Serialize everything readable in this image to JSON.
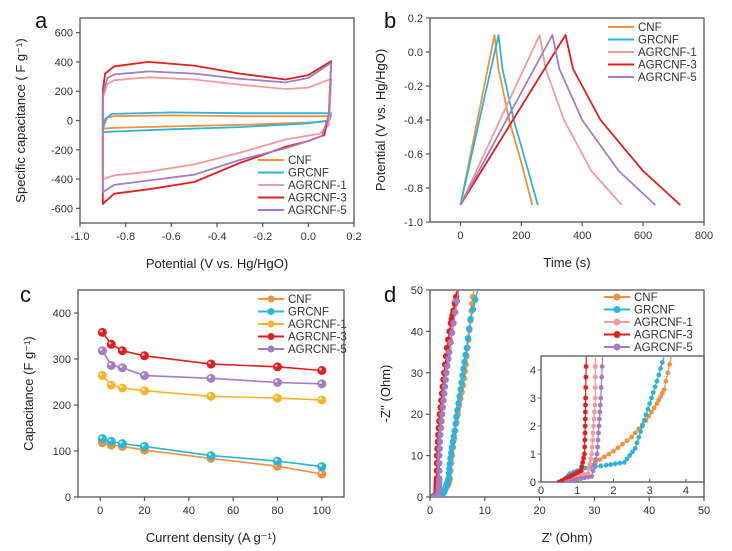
{
  "figure": {
    "panels": [
      "a",
      "b",
      "c",
      "d"
    ]
  },
  "colors": {
    "CNF": "#f0913e",
    "GRCNF": "#2bb5de",
    "AGRCNF-1": "#f59a9a",
    "AGRCNF-3": "#e41d1d",
    "AGRCNF-5": "#a57cc3",
    "AGRCNF-1_c": "#f7b529"
  },
  "chart_data": [
    {
      "panel": "a",
      "type": "line",
      "title": "",
      "xlabel": "Potential (V vs. Hg/HgO)",
      "ylabel": "Specific capacitance ( F g⁻¹)",
      "xlim": [
        -1.0,
        0.2
      ],
      "ylim": [
        -700,
        700
      ],
      "xticks": [
        "-1.0",
        "-0.8",
        "-0.6",
        "-0.4",
        "-0.2",
        "0.0",
        "0.2"
      ],
      "yticks": [
        "-600",
        "-400",
        "-200",
        "0",
        "200",
        "400",
        "600"
      ],
      "legend": [
        "CNF",
        "GRCNF",
        "AGRCNF-1",
        "AGRCNF-3",
        "AGRCNF-5"
      ],
      "legend_position": "bottom-right",
      "series": [
        {
          "name": "CNF",
          "upper": [
            [
              -0.9,
              -50
            ],
            [
              -0.88,
              20
            ],
            [
              -0.85,
              30
            ],
            [
              -0.6,
              35
            ],
            [
              -0.3,
              30
            ],
            [
              0,
              30
            ],
            [
              0.1,
              30
            ]
          ],
          "lower": [
            [
              0.1,
              30
            ],
            [
              0.09,
              -5
            ],
            [
              0,
              -15
            ],
            [
              -0.3,
              -30
            ],
            [
              -0.6,
              -40
            ],
            [
              -0.85,
              -50
            ],
            [
              -0.9,
              -55
            ]
          ]
        },
        {
          "name": "GRCNF",
          "upper": [
            [
              -0.9,
              -75
            ],
            [
              -0.89,
              10
            ],
            [
              -0.86,
              45
            ],
            [
              -0.6,
              55
            ],
            [
              -0.3,
              50
            ],
            [
              0,
              50
            ],
            [
              0.1,
              50
            ]
          ],
          "lower": [
            [
              0.1,
              50
            ],
            [
              0.09,
              0
            ],
            [
              0,
              -20
            ],
            [
              -0.3,
              -45
            ],
            [
              -0.6,
              -60
            ],
            [
              -0.85,
              -75
            ],
            [
              -0.9,
              -80
            ]
          ]
        },
        {
          "name": "AGRCNF-1",
          "upper": [
            [
              -0.9,
              -395
            ],
            [
              -0.9,
              150
            ],
            [
              -0.88,
              250
            ],
            [
              -0.85,
              275
            ],
            [
              -0.7,
              295
            ],
            [
              -0.5,
              280
            ],
            [
              -0.3,
              245
            ],
            [
              -0.1,
              215
            ],
            [
              0.0,
              225
            ],
            [
              0.1,
              285
            ]
          ],
          "lower": [
            [
              0.1,
              285
            ],
            [
              0.09,
              -30
            ],
            [
              0.05,
              -90
            ],
            [
              -0.1,
              -130
            ],
            [
              -0.3,
              -220
            ],
            [
              -0.5,
              -300
            ],
            [
              -0.7,
              -350
            ],
            [
              -0.85,
              -375
            ],
            [
              -0.9,
              -400
            ]
          ]
        },
        {
          "name": "AGRCNF-3",
          "upper": [
            [
              -0.9,
              -570
            ],
            [
              -0.9,
              200
            ],
            [
              -0.89,
              320
            ],
            [
              -0.85,
              370
            ],
            [
              -0.7,
              400
            ],
            [
              -0.5,
              375
            ],
            [
              -0.3,
              320
            ],
            [
              -0.1,
              280
            ],
            [
              0.0,
              310
            ],
            [
              0.1,
              405
            ]
          ],
          "lower": [
            [
              0.1,
              405
            ],
            [
              0.09,
              50
            ],
            [
              0.07,
              -100
            ],
            [
              0.0,
              -140
            ],
            [
              -0.1,
              -180
            ],
            [
              -0.3,
              -290
            ],
            [
              -0.5,
              -420
            ],
            [
              -0.7,
              -470
            ],
            [
              -0.85,
              -500
            ],
            [
              -0.89,
              -555
            ],
            [
              -0.9,
              -570
            ]
          ]
        },
        {
          "name": "AGRCNF-5",
          "upper": [
            [
              -0.9,
              -490
            ],
            [
              -0.9,
              180
            ],
            [
              -0.88,
              290
            ],
            [
              -0.85,
              315
            ],
            [
              -0.7,
              335
            ],
            [
              -0.5,
              320
            ],
            [
              -0.3,
              285
            ],
            [
              -0.1,
              260
            ],
            [
              0.0,
              290
            ],
            [
              0.1,
              395
            ]
          ],
          "lower": [
            [
              0.1,
              395
            ],
            [
              0.09,
              40
            ],
            [
              0.06,
              -105
            ],
            [
              0.0,
              -140
            ],
            [
              -0.1,
              -190
            ],
            [
              -0.3,
              -270
            ],
            [
              -0.5,
              -370
            ],
            [
              -0.7,
              -410
            ],
            [
              -0.85,
              -440
            ],
            [
              -0.9,
              -490
            ]
          ]
        }
      ]
    },
    {
      "panel": "b",
      "type": "line",
      "title": "",
      "xlabel": "Time (s)",
      "ylabel": "Potential (V vs. Hg/HgO)",
      "xlim": [
        -100,
        800
      ],
      "ylim": [
        -1.0,
        0.2
      ],
      "xticks": [
        "0",
        "200",
        "400",
        "600",
        "800"
      ],
      "yticks": [
        "-1.0",
        "-0.8",
        "-0.6",
        "-0.4",
        "-0.2",
        "0.0",
        "0.2"
      ],
      "legend": [
        "CNF",
        "GRCNF",
        "AGRCNF-1",
        "AGRCNF-3",
        "AGRCNF-5"
      ],
      "legend_position": "top-right",
      "series": [
        {
          "name": "CNF",
          "points": [
            [
              0,
              -0.9
            ],
            [
              112,
              0.1
            ],
            [
              125,
              -0.1
            ],
            [
              160,
              -0.4
            ],
            [
              200,
              -0.65
            ],
            [
              236,
              -0.9
            ]
          ]
        },
        {
          "name": "GRCNF",
          "points": [
            [
              0,
              -0.9
            ],
            [
              125,
              0.1
            ],
            [
              138,
              -0.1
            ],
            [
              175,
              -0.4
            ],
            [
              215,
              -0.65
            ],
            [
              254,
              -0.9
            ]
          ]
        },
        {
          "name": "AGRCNF-1",
          "points": [
            [
              0,
              -0.9
            ],
            [
              260,
              0.1
            ],
            [
              280,
              -0.1
            ],
            [
              340,
              -0.4
            ],
            [
              430,
              -0.7
            ],
            [
              530,
              -0.9
            ]
          ]
        },
        {
          "name": "AGRCNF-3",
          "points": [
            [
              0,
              -0.9
            ],
            [
              345,
              0.1
            ],
            [
              370,
              -0.1
            ],
            [
              460,
              -0.4
            ],
            [
              600,
              -0.7
            ],
            [
              722,
              -0.9
            ]
          ]
        },
        {
          "name": "AGRCNF-5",
          "points": [
            [
              0,
              -0.9
            ],
            [
              302,
              0.1
            ],
            [
              325,
              -0.1
            ],
            [
              400,
              -0.4
            ],
            [
              520,
              -0.7
            ],
            [
              640,
              -0.9
            ]
          ]
        }
      ]
    },
    {
      "panel": "c",
      "type": "line",
      "title": "",
      "xlabel": "Current density (A g⁻¹)",
      "ylabel": "Capacitance (F g⁻¹)",
      "xlim": [
        -10,
        110
      ],
      "ylim": [
        0,
        450
      ],
      "xticks": [
        "0",
        "20",
        "40",
        "60",
        "80",
        "100"
      ],
      "yticks": [
        "0",
        "100",
        "200",
        "300",
        "400"
      ],
      "legend": [
        "CNF",
        "GRCNF",
        "AGRCNF-1",
        "AGRCNF-3",
        "AGRCNF-5"
      ],
      "legend_position": "top-right",
      "x": [
        1,
        5,
        10,
        20,
        50,
        80,
        100
      ],
      "series": [
        {
          "name": "CNF",
          "values": [
            118,
            113,
            110,
            102,
            84,
            67,
            50
          ]
        },
        {
          "name": "GRCNF",
          "values": [
            127,
            121,
            116,
            110,
            90,
            78,
            66
          ]
        },
        {
          "name": "AGRCNF-1",
          "values": [
            264,
            243,
            237,
            231,
            219,
            215,
            211
          ]
        },
        {
          "name": "AGRCNF-3",
          "values": [
            358,
            332,
            318,
            307,
            289,
            283,
            275
          ]
        },
        {
          "name": "AGRCNF-5",
          "values": [
            318,
            286,
            281,
            264,
            258,
            249,
            246
          ]
        }
      ]
    },
    {
      "panel": "d",
      "type": "scatter",
      "title": "",
      "xlabel": "Z' (Ohm)",
      "ylabel": "-Z'' (Ohm)",
      "xlim": [
        0,
        50
      ],
      "ylim": [
        0,
        50
      ],
      "xticks": [
        "0",
        "10",
        "20",
        "30",
        "40",
        "50"
      ],
      "yticks": [
        "0",
        "10",
        "20",
        "30",
        "40",
        "50"
      ],
      "legend": [
        "CNF",
        "GRCNF",
        "AGRCNF-1",
        "AGRCNF-3",
        "AGRCNF-5"
      ],
      "legend_position": "top-right",
      "series": [
        {
          "name": "CNF",
          "points": [
            [
              0.6,
              0
            ],
            [
              1.0,
              0.3
            ],
            [
              1.5,
              0.7
            ],
            [
              2.0,
              1.1
            ],
            [
              2.5,
              1.6
            ],
            [
              2.9,
              2.2
            ],
            [
              3.2,
              2.8
            ],
            [
              3.4,
              3.3
            ],
            [
              3.6,
              4.5
            ],
            [
              4.0,
              10
            ],
            [
              4.6,
              16
            ],
            [
              5.3,
              22
            ],
            [
              6.0,
              27
            ],
            [
              6.5,
              32
            ],
            [
              7.0,
              38
            ],
            [
              7.6,
              45
            ],
            [
              8.0,
              50
            ]
          ]
        },
        {
          "name": "GRCNF",
          "points": [
            [
              0.6,
              0
            ],
            [
              0.8,
              0.3
            ],
            [
              1.2,
              0.5
            ],
            [
              1.8,
              0.6
            ],
            [
              2.3,
              0.7
            ],
            [
              2.6,
              1.2
            ],
            [
              2.8,
              2.0
            ],
            [
              3.0,
              2.8
            ],
            [
              3.2,
              3.6
            ],
            [
              3.4,
              4.5
            ],
            [
              3.6,
              8
            ],
            [
              4.0,
              12
            ],
            [
              4.5,
              16
            ],
            [
              5.0,
              21
            ],
            [
              5.6,
              26
            ],
            [
              6.1,
              31
            ],
            [
              6.7,
              36
            ],
            [
              7.4,
              43
            ],
            [
              8.7,
              50
            ]
          ]
        },
        {
          "name": "AGRCNF-1",
          "points": [
            [
              0.6,
              0
            ],
            [
              0.9,
              0.15
            ],
            [
              1.3,
              0.3
            ],
            [
              1.4,
              1.0
            ],
            [
              1.45,
              2.0
            ],
            [
              1.5,
              3.0
            ],
            [
              1.5,
              4.5
            ],
            [
              1.6,
              10
            ],
            [
              1.8,
              15
            ],
            [
              2.1,
              20
            ],
            [
              2.5,
              25
            ],
            [
              2.9,
              30
            ],
            [
              3.4,
              36
            ],
            [
              4.0,
              42
            ],
            [
              4.8,
              50
            ]
          ]
        },
        {
          "name": "AGRCNF-3",
          "points": [
            [
              0.5,
              0
            ],
            [
              0.8,
              0.2
            ],
            [
              1.1,
              0.4
            ],
            [
              1.2,
              1.0
            ],
            [
              1.22,
              2.0
            ],
            [
              1.23,
              3.0
            ],
            [
              1.25,
              4.5
            ],
            [
              1.3,
              10
            ],
            [
              1.5,
              15
            ],
            [
              1.8,
              20
            ],
            [
              2.2,
              25
            ],
            [
              2.6,
              30
            ],
            [
              3.1,
              36
            ],
            [
              3.8,
              42
            ],
            [
              4.3,
              45
            ],
            [
              5.0,
              50
            ]
          ]
        },
        {
          "name": "AGRCNF-5",
          "points": [
            [
              0.7,
              0
            ],
            [
              1.0,
              0.1
            ],
            [
              1.4,
              0.2
            ],
            [
              1.55,
              1.0
            ],
            [
              1.6,
              2.0
            ],
            [
              1.65,
              3.0
            ],
            [
              1.7,
              4.5
            ],
            [
              1.7,
              10
            ],
            [
              1.9,
              15
            ],
            [
              2.2,
              20
            ],
            [
              2.6,
              25
            ],
            [
              3.0,
              30
            ],
            [
              3.5,
              35
            ],
            [
              4.3,
              42
            ],
            [
              5.2,
              50
            ]
          ]
        }
      ],
      "inset": {
        "xlim": [
          0,
          4.5
        ],
        "ylim": [
          0,
          4.5
        ],
        "xticks": [
          "0",
          "1",
          "2",
          "3",
          "4"
        ],
        "yticks": [
          "0",
          "1",
          "2",
          "3",
          "4"
        ]
      }
    }
  ]
}
